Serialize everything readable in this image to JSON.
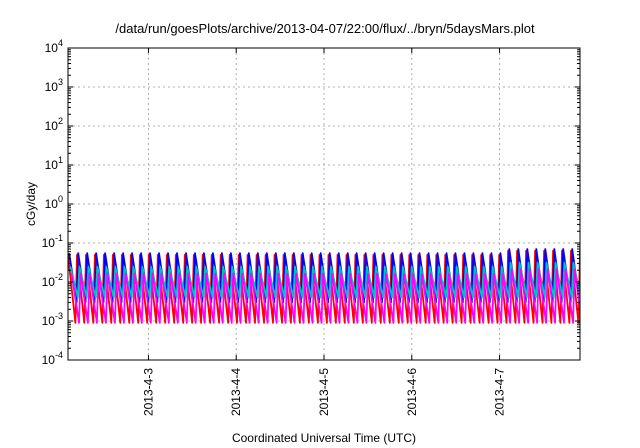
{
  "chart_data": {
    "type": "line",
    "title": "/data/run/goesPlots/archive/2013-04-07/22:00/flux/../bryn/5daysMars.plot",
    "xlabel": "Coordinated Universal Time (UTC)",
    "ylabel": "cGy/day",
    "yscale": "log",
    "ylim": [
      0.0001,
      10000
    ],
    "xlim": [
      "2013-04-02 02:00",
      "2013-04-07 22:00"
    ],
    "grid": true,
    "x_ticks": [
      {
        "label": "2013-4-3",
        "value": "2013-04-03 00:00"
      },
      {
        "label": "2013-4-4",
        "value": "2013-04-04 00:00"
      },
      {
        "label": "2013-4-5",
        "value": "2013-04-05 00:00"
      },
      {
        "label": "2013-4-6",
        "value": "2013-04-06 00:00"
      },
      {
        "label": "2013-4-7",
        "value": "2013-04-07 00:00"
      }
    ],
    "y_ticks": [
      {
        "base": "10",
        "exp": "-4",
        "value": 0.0001
      },
      {
        "base": "10",
        "exp": "-3",
        "value": 0.001
      },
      {
        "base": "10",
        "exp": "-2",
        "value": 0.01
      },
      {
        "base": "10",
        "exp": "-1",
        "value": 0.1
      },
      {
        "base": "10",
        "exp": "0",
        "value": 1
      },
      {
        "base": "10",
        "exp": "1",
        "value": 10
      },
      {
        "base": "10",
        "exp": "2",
        "value": 100
      },
      {
        "base": "10",
        "exp": "3",
        "value": 1000
      },
      {
        "base": "10",
        "exp": "4",
        "value": 10000
      }
    ],
    "pattern": {
      "cycles": 57,
      "peak_before_apr7": 0.055,
      "peak_after_apr7": 0.07
    },
    "series": [
      {
        "color": "#ff0000",
        "peak_factor": 0.9,
        "trough": 0.0009
      },
      {
        "color": "#0000ff",
        "peak_factor": 1.0,
        "trough": 0.003
      },
      {
        "color": "#00c0c0",
        "peak_factor": 0.45,
        "trough": 0.004
      },
      {
        "color": "#ff00ff",
        "peak_factor": 0.3,
        "trough": 0.0009
      }
    ]
  }
}
